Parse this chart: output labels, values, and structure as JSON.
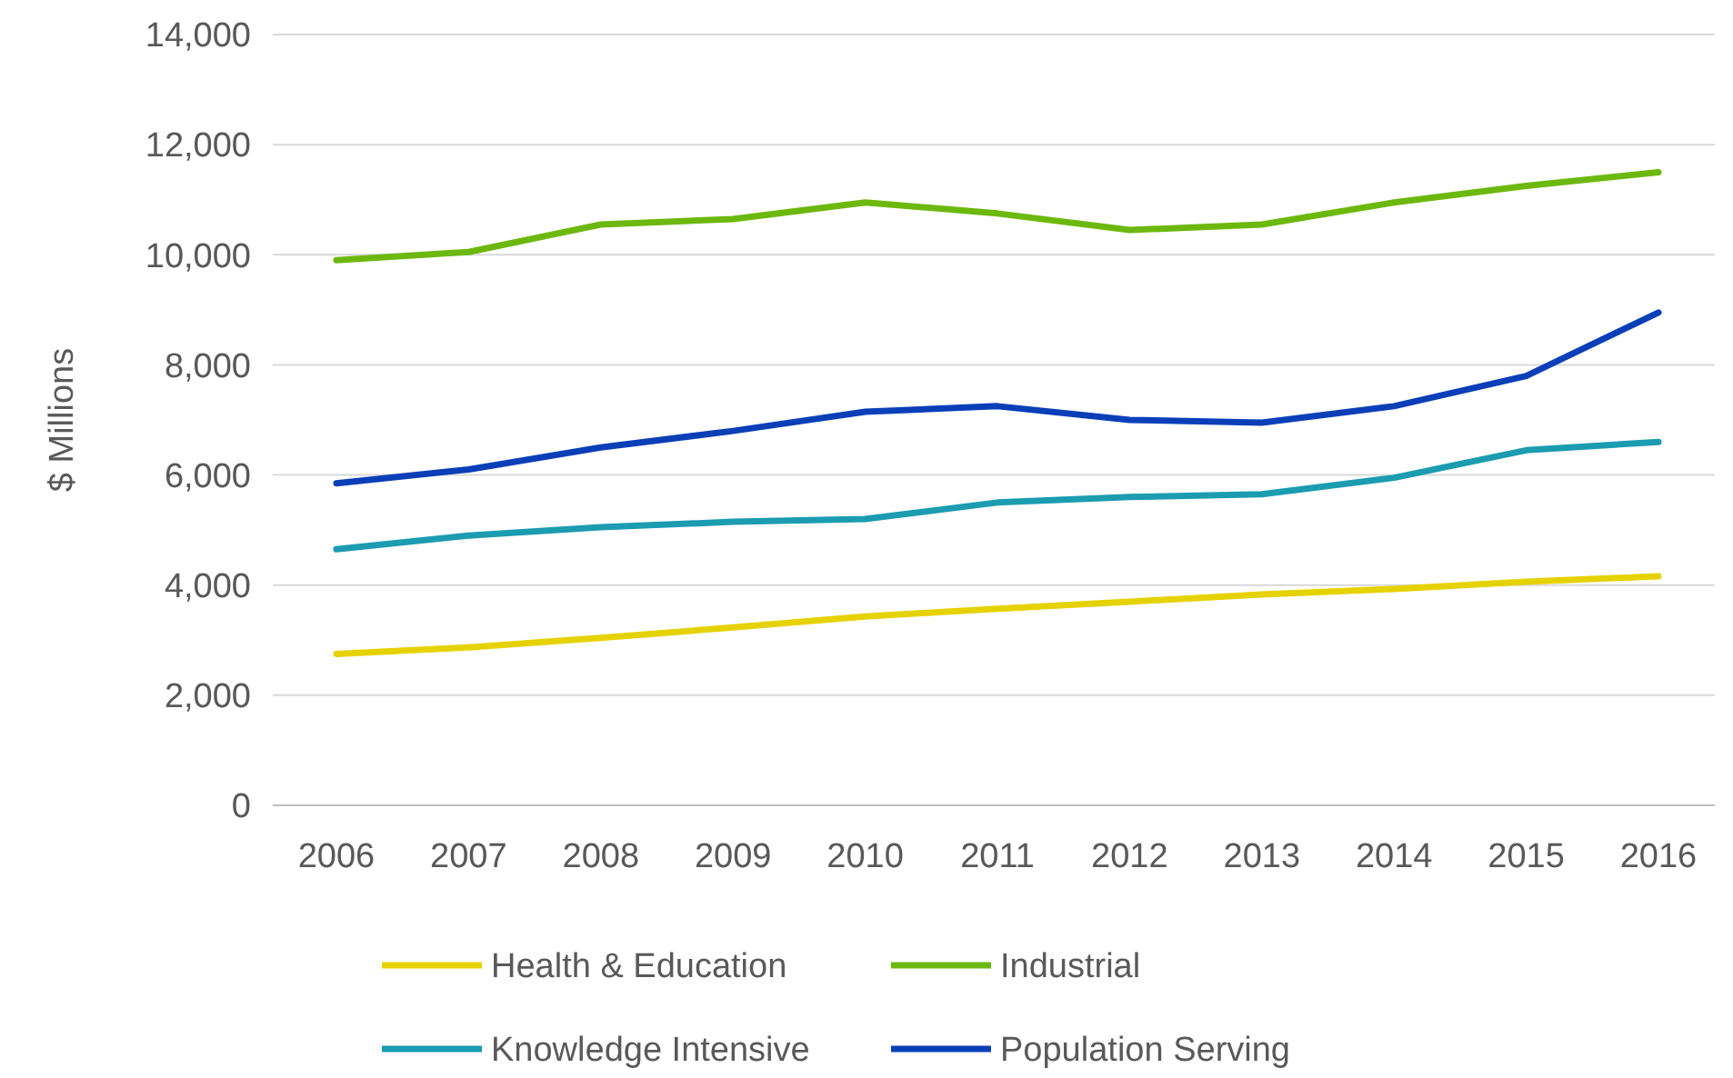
{
  "chart_data": {
    "type": "line",
    "ylabel": "$ Millions",
    "categories": [
      "2006",
      "2007",
      "2008",
      "2009",
      "2010",
      "2011",
      "2012",
      "2013",
      "2014",
      "2015",
      "2016"
    ],
    "series": [
      {
        "name": "Health & Education",
        "color": "#e6d200",
        "values": [
          2750,
          2870,
          3040,
          3230,
          3430,
          3570,
          3700,
          3830,
          3930,
          4060,
          4160
        ]
      },
      {
        "name": "Industrial",
        "color": "#6cb80e",
        "values": [
          9900,
          10050,
          10550,
          10650,
          10950,
          10750,
          10450,
          10550,
          10950,
          11250,
          11500
        ]
      },
      {
        "name": "Knowledge Intensive",
        "color": "#1b9cb0",
        "values": [
          4650,
          4900,
          5050,
          5150,
          5200,
          5500,
          5600,
          5650,
          5950,
          6450,
          6600
        ]
      },
      {
        "name": "Population Serving",
        "color": "#0a3fb8",
        "values": [
          5850,
          6100,
          6500,
          6800,
          7150,
          7250,
          7000,
          6950,
          7250,
          7800,
          8950
        ]
      }
    ],
    "ylim": [
      0,
      14000
    ],
    "yticks": [
      {
        "value": 0,
        "label": "0"
      },
      {
        "value": 2000,
        "label": "2,000"
      },
      {
        "value": 4000,
        "label": "4,000"
      },
      {
        "value": 6000,
        "label": "6,000"
      },
      {
        "value": 8000,
        "label": "8,000"
      },
      {
        "value": 10000,
        "label": "10,000"
      },
      {
        "value": 12000,
        "label": "12,000"
      },
      {
        "value": 14000,
        "label": "14,000"
      }
    ],
    "grid": "y",
    "legend": "bottom",
    "marker": "none",
    "line_style": "solid"
  }
}
